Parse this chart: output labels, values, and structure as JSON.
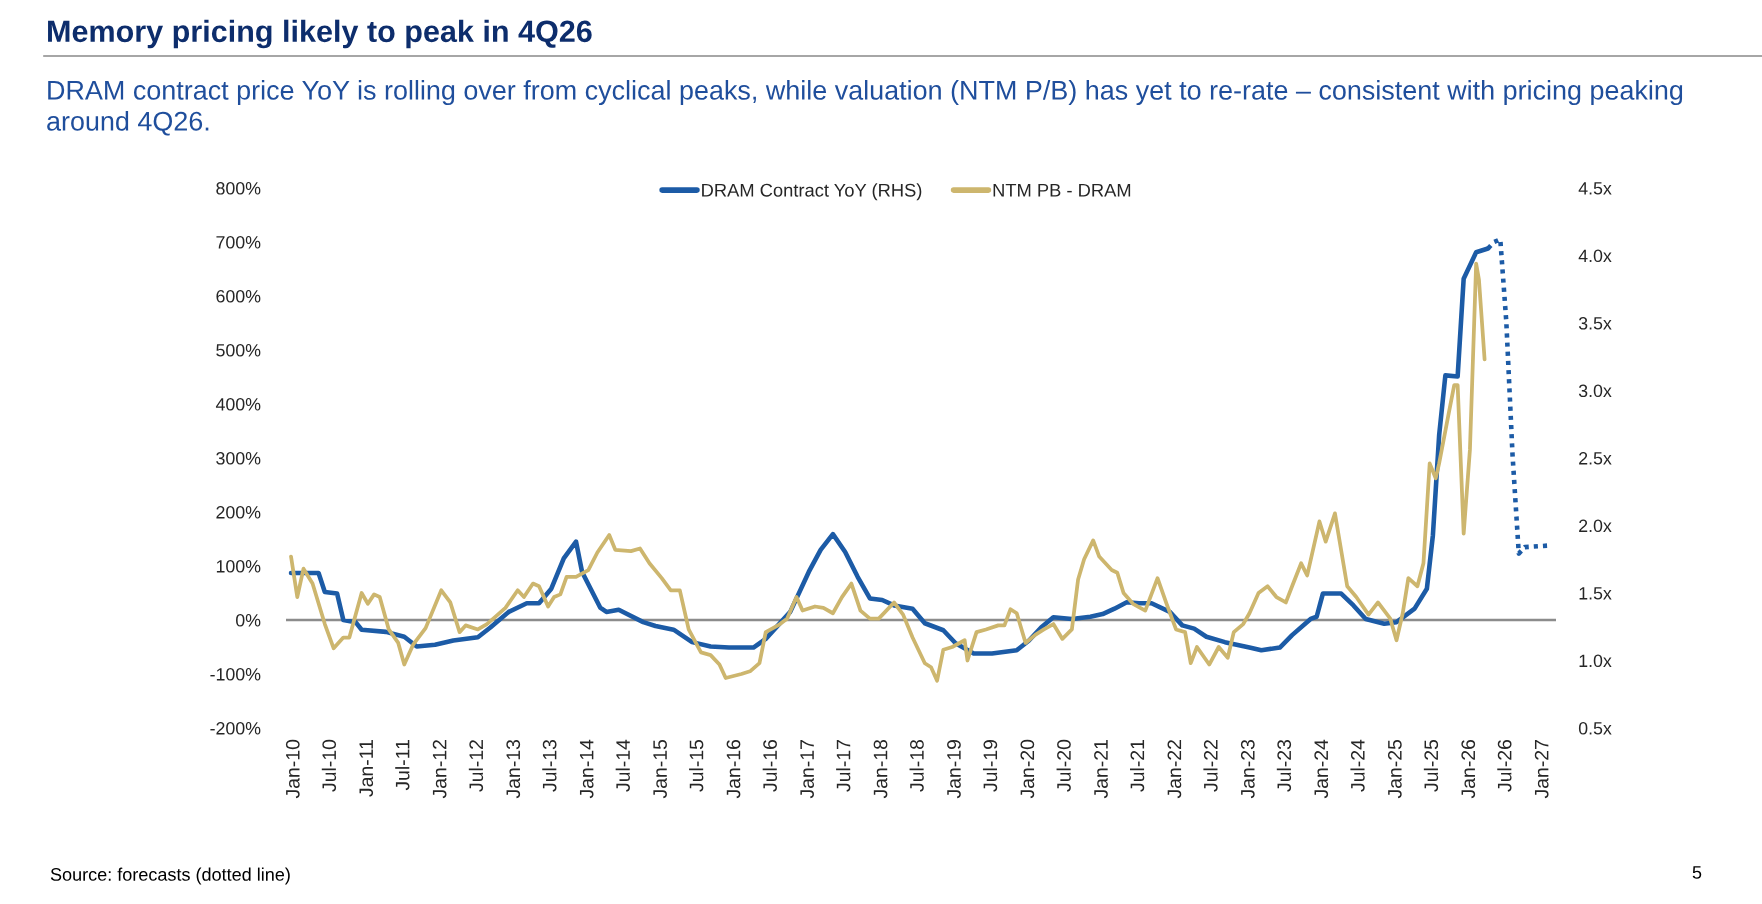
{
  "chart_data": {
    "type": "line",
    "title": "Memory pricing likely to peak in 4Q26",
    "subtitle": "DRAM contract price YoY is rolling over from cyclical peaks, while valuation (NTM P/B) has yet to re-rate – consistent with pricing peaking around 4Q26.",
    "annotations": [
      "Source: forecasts (dotted line)",
      "5"
    ],
    "xlim": [
      "2009-11-20",
      "2027-03-05"
    ],
    "xticks": [
      {
        "value": "2010-01",
        "label": "Jan-10"
      },
      {
        "value": "2010-07",
        "label": "Jul-10"
      },
      {
        "value": "2011-01",
        "label": "Jan-11"
      },
      {
        "value": "2011-07",
        "label": "Jul-11"
      },
      {
        "value": "2012-01",
        "label": "Jan-12"
      },
      {
        "value": "2012-07",
        "label": "Jul-12"
      },
      {
        "value": "2013-01",
        "label": "Jan-13"
      },
      {
        "value": "2013-07",
        "label": "Jul-13"
      },
      {
        "value": "2014-01",
        "label": "Jan-14"
      },
      {
        "value": "2014-07",
        "label": "Jul-14"
      },
      {
        "value": "2015-01",
        "label": "Jan-15"
      },
      {
        "value": "2015-07",
        "label": "Jul-15"
      },
      {
        "value": "2016-01",
        "label": "Jan-16"
      },
      {
        "value": "2016-07",
        "label": "Jul-16"
      },
      {
        "value": "2017-01",
        "label": "Jan-17"
      },
      {
        "value": "2017-07",
        "label": "Jul-17"
      },
      {
        "value": "2018-01",
        "label": "Jan-18"
      },
      {
        "value": "2018-07",
        "label": "Jul-18"
      },
      {
        "value": "2019-01",
        "label": "Jan-19"
      },
      {
        "value": "2019-07",
        "label": "Jul-19"
      },
      {
        "value": "2020-01",
        "label": "Jan-20"
      },
      {
        "value": "2020-07",
        "label": "Jul-20"
      },
      {
        "value": "2021-01",
        "label": "Jan-21"
      },
      {
        "value": "2021-07",
        "label": "Jul-21"
      },
      {
        "value": "2022-01",
        "label": "Jan-22"
      },
      {
        "value": "2022-07",
        "label": "Jul-22"
      },
      {
        "value": "2023-01",
        "label": "Jan-23"
      },
      {
        "value": "2023-07",
        "label": "Jul-23"
      },
      {
        "value": "2024-01",
        "label": "Jan-24"
      },
      {
        "value": "2024-07",
        "label": "Jul-24"
      },
      {
        "value": "2025-01",
        "label": "Jan-25"
      },
      {
        "value": "2025-07",
        "label": "Jul-25"
      },
      {
        "value": "2026-01",
        "label": "Jan-26"
      },
      {
        "value": "2026-07",
        "label": "Jul-26"
      },
      {
        "value": "2027-01",
        "label": "Jan-27"
      }
    ],
    "ylim": [
      -200,
      800
    ],
    "yticks": [
      {
        "value": -200,
        "label": "-200%"
      },
      {
        "value": -100,
        "label": "-100%"
      },
      {
        "value": 0,
        "label": "0%"
      },
      {
        "value": 100,
        "label": "100%"
      },
      {
        "value": 200,
        "label": "200%"
      },
      {
        "value": 300,
        "label": "300%"
      },
      {
        "value": 400,
        "label": "400%"
      },
      {
        "value": 500,
        "label": "500%"
      },
      {
        "value": 600,
        "label": "600%"
      },
      {
        "value": 700,
        "label": "700%"
      },
      {
        "value": 800,
        "label": "800%"
      }
    ],
    "y2lim": [
      0.5,
      4.5
    ],
    "y2ticks": [
      {
        "value": 0.5,
        "label": "0.5x"
      },
      {
        "value": 1.0,
        "label": "1.0x"
      },
      {
        "value": 1.5,
        "label": "1.5x"
      },
      {
        "value": 2.0,
        "label": "2.0x"
      },
      {
        "value": 2.5,
        "label": "2.5x"
      },
      {
        "value": 3.0,
        "label": "3.0x"
      },
      {
        "value": 3.5,
        "label": "3.5x"
      },
      {
        "value": 4.0,
        "label": "4.0x"
      },
      {
        "value": 4.5,
        "label": "4.5x"
      }
    ],
    "ref_lines": [
      {
        "axis": "y",
        "value": 0,
        "color": "#8c8c8c"
      }
    ],
    "legend": "top",
    "series": [
      {
        "name": "DRAM Contract YoY (RHS)",
        "color": "#1c5ba6",
        "axis": "y",
        "x": [
          "2009-12-15",
          "2010-05",
          "2010-06",
          "2010-08",
          "2010-09",
          "2010-11",
          "2010-12",
          "2011-04",
          "2011-07",
          "2011-09",
          "2011-12",
          "2012-03",
          "2012-07",
          "2012-09",
          "2012-12",
          "2013-03",
          "2013-05",
          "2013-07",
          "2013-09",
          "2013-11",
          "2013-12",
          "2014-03",
          "2014-04",
          "2014-06",
          "2014-10",
          "2014-12",
          "2015-03",
          "2015-06",
          "2015-09",
          "2015-12",
          "2016-04",
          "2016-06",
          "2016-10",
          "2017-01",
          "2017-03",
          "2017-05",
          "2017-07",
          "2017-09",
          "2017-11",
          "2018-01",
          "2018-03",
          "2018-06",
          "2018-08",
          "2018-11",
          "2019-01",
          "2019-04",
          "2019-07",
          "2019-11",
          "2020-01",
          "2020-03",
          "2020-05",
          "2020-08",
          "2020-11",
          "2021-01",
          "2021-03",
          "2021-05",
          "2021-07",
          "2021-09",
          "2021-12",
          "2022-02",
          "2022-04",
          "2022-06",
          "2022-09",
          "2023-01",
          "2023-03",
          "2023-06",
          "2023-08",
          "2023-11",
          "2023-12",
          "2024-01",
          "2024-04",
          "2024-06",
          "2024-08",
          "2024-11",
          "2025-01",
          "2025-04",
          "2025-06",
          "2025-07",
          "2025-08",
          "2025-09",
          "2025-11",
          "2025-12",
          "2026-02",
          "2026-04"
        ],
        "values": [
          87,
          87,
          52,
          49,
          0,
          -4,
          -18,
          -22,
          -31,
          -49,
          -46,
          -38,
          -32,
          -14,
          15,
          31,
          31,
          58,
          114,
          145,
          89,
          23,
          15,
          19,
          -4,
          -11,
          -18,
          -41,
          -49,
          -51,
          -51,
          -35,
          15,
          89,
          130,
          159,
          126,
          80,
          40,
          37,
          27,
          21,
          -6,
          -19,
          -43,
          -62,
          -62,
          -56,
          -38,
          -14,
          5,
          2,
          6,
          11,
          21,
          33,
          31,
          31,
          15,
          -10,
          -16,
          -31,
          -41,
          -51,
          -56,
          -51,
          -28,
          2,
          6,
          49,
          49,
          27,
          2,
          -7,
          -4,
          21,
          58,
          157,
          342,
          453,
          451,
          632,
          681,
          688
        ]
      },
      {
        "color": "#1c5ba6",
        "axis": "y",
        "line_style": "dotted",
        "x": [
          "2026-04",
          "2026-05",
          "2026-06",
          "2026-07",
          "2026-08",
          "2026-09",
          "2026-10",
          "2027-02"
        ],
        "values": [
          688,
          700,
          705,
          552,
          305,
          123,
          135,
          138
        ]
      },
      {
        "name": "NTM PB - DRAM",
        "color": "#cdb66e",
        "axis": "y2",
        "x": [
          "2009-12-15",
          "2010-01-15",
          "2010-02-15",
          "2010-04-01",
          "2010-06-01",
          "2010-07-15",
          "2010-09-01",
          "2010-10-01",
          "2010-12-01",
          "2011-01-01",
          "2011-02-01",
          "2011-03-01",
          "2011-04-15",
          "2011-06-01",
          "2011-07-01",
          "2011-08-15",
          "2011-10-15",
          "2012-01-01",
          "2012-02-15",
          "2012-04-01",
          "2012-05-01",
          "2012-07-01",
          "2012-08-15",
          "2012-10-01",
          "2012-11-15",
          "2013-01-15",
          "2013-02-15",
          "2013-04-01",
          "2013-05-01",
          "2013-06-15",
          "2013-07-15",
          "2013-08-15",
          "2013-09-15",
          "2013-11-01",
          "2014-01-01",
          "2014-02-15",
          "2014-04-15",
          "2014-05-15",
          "2014-08-01",
          "2014-09-15",
          "2014-11-01",
          "2015-01-01",
          "2015-02-15",
          "2015-04-01",
          "2015-05-15",
          "2015-07-15",
          "2015-09-01",
          "2015-10-15",
          "2015-11-15",
          "2016-02-01",
          "2016-03-15",
          "2016-05-01",
          "2016-06-01",
          "2016-08-01",
          "2016-09-15",
          "2016-11-01",
          "2016-12-01",
          "2017-02-01",
          "2017-03-15",
          "2017-05-01",
          "2017-06-15",
          "2017-08-01",
          "2017-09-15",
          "2017-11-01",
          "2017-12-15",
          "2018-03-01",
          "2018-04-15",
          "2018-06-01",
          "2018-08-01",
          "2018-09-01",
          "2018-10-01",
          "2018-11-01",
          "2018-12-15",
          "2019-02-15",
          "2019-03-01",
          "2019-04-15",
          "2019-06-01",
          "2019-08-01",
          "2019-09-01",
          "2019-10-01",
          "2019-11-01",
          "2019-12-15",
          "2020-02-01",
          "2020-03-15",
          "2020-05-01",
          "2020-06-15",
          "2020-08-01",
          "2020-09-01",
          "2020-10-01",
          "2020-11-15",
          "2020-12-15",
          "2021-02-15",
          "2021-03-15",
          "2021-04-15",
          "2021-06-01",
          "2021-08-01",
          "2021-10-01",
          "2021-11-15",
          "2022-01-01",
          "2022-02-15",
          "2022-03-15",
          "2022-04-15",
          "2022-06-15",
          "2022-08-01",
          "2022-09-15",
          "2022-10-15",
          "2022-12-01",
          "2023-01-01",
          "2023-02-15",
          "2023-04-01",
          "2023-05-15",
          "2023-07-01",
          "2023-08-01",
          "2023-09-15",
          "2023-10-15",
          "2023-12-15",
          "2024-01-15",
          "2024-03-01",
          "2024-05-01",
          "2024-06-15",
          "2024-08-15",
          "2024-10-01",
          "2024-12-01",
          "2025-01-01",
          "2025-02-01",
          "2025-03-01",
          "2025-04-15",
          "2025-05-15",
          "2025-06-15",
          "2025-07-15",
          "2025-08-01",
          "2025-09-15",
          "2025-10-15",
          "2025-11-01",
          "2025-12-01",
          "2026-01-01",
          "2026-02-01",
          "2026-02-15",
          "2026-03-15"
        ],
        "values": [
          1.77,
          1.47,
          1.68,
          1.57,
          1.27,
          1.09,
          1.17,
          1.17,
          1.5,
          1.42,
          1.49,
          1.47,
          1.23,
          1.13,
          0.97,
          1.12,
          1.24,
          1.52,
          1.43,
          1.21,
          1.26,
          1.23,
          1.27,
          1.33,
          1.39,
          1.52,
          1.47,
          1.57,
          1.55,
          1.4,
          1.47,
          1.49,
          1.62,
          1.62,
          1.67,
          1.8,
          1.93,
          1.82,
          1.81,
          1.83,
          1.72,
          1.61,
          1.52,
          1.52,
          1.23,
          1.06,
          1.04,
          0.97,
          0.87,
          0.9,
          0.92,
          0.98,
          1.21,
          1.26,
          1.31,
          1.47,
          1.37,
          1.4,
          1.39,
          1.35,
          1.47,
          1.57,
          1.37,
          1.31,
          1.31,
          1.43,
          1.34,
          1.17,
          0.98,
          0.95,
          0.85,
          1.08,
          1.1,
          1.15,
          1.0,
          1.21,
          1.23,
          1.26,
          1.26,
          1.38,
          1.35,
          1.13,
          1.19,
          1.23,
          1.27,
          1.16,
          1.23,
          1.6,
          1.75,
          1.89,
          1.77,
          1.67,
          1.65,
          1.5,
          1.42,
          1.37,
          1.61,
          1.42,
          1.23,
          1.21,
          0.98,
          1.1,
          0.97,
          1.1,
          1.02,
          1.21,
          1.27,
          1.35,
          1.5,
          1.55,
          1.47,
          1.43,
          1.55,
          1.72,
          1.63,
          2.03,
          1.88,
          2.09,
          1.55,
          1.47,
          1.34,
          1.43,
          1.31,
          1.15,
          1.35,
          1.61,
          1.55,
          1.72,
          2.46,
          2.35,
          2.46,
          2.81,
          3.04,
          3.04,
          1.94,
          2.56,
          3.94,
          3.82,
          3.23
        ]
      }
    ]
  }
}
